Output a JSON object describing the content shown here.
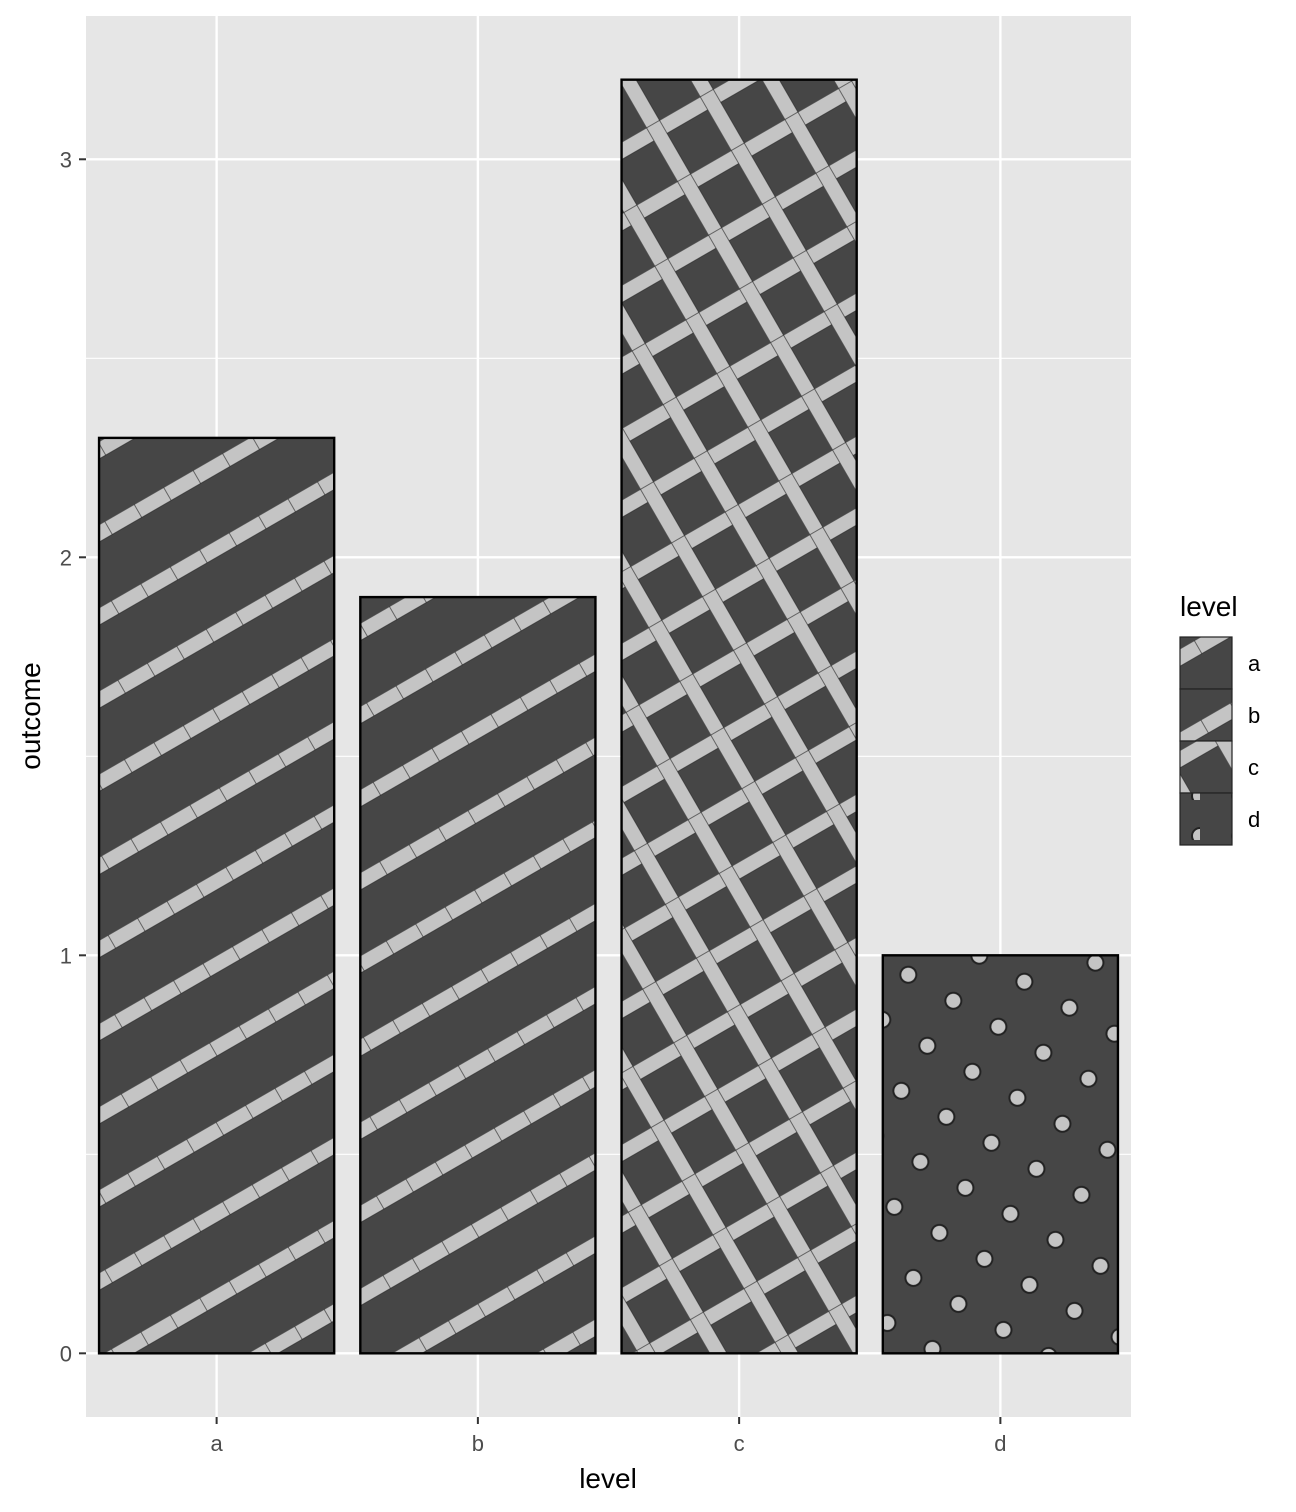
{
  "chart_data": {
    "type": "bar",
    "categories": [
      "a",
      "b",
      "c",
      "d"
    ],
    "values": [
      2.3,
      1.9,
      3.2,
      1.0
    ],
    "patterns": [
      "stripe",
      "stripe",
      "crosshatch",
      "circle"
    ],
    "xlabel": "level",
    "ylabel": "outcome",
    "ylim": [
      -0.16,
      3.36
    ],
    "yticks": [
      0,
      1,
      2,
      3
    ],
    "grid": true,
    "legend": {
      "title": "level",
      "position": "right",
      "entries": [
        "a",
        "b",
        "c",
        "d"
      ]
    },
    "colors": {
      "panel": "#e6e6e6",
      "grid": "#ffffff",
      "bar_fill": "#464646",
      "pattern_fill": "#c4c4c4",
      "outline": "#000000"
    }
  }
}
